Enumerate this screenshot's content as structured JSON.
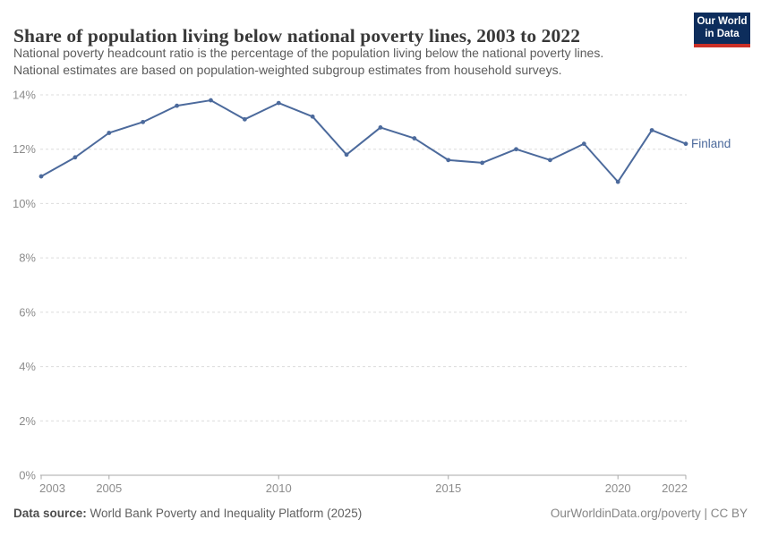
{
  "header": {
    "title": "Share of population living below national poverty lines, 2003 to 2022",
    "subtitle_line1": "National poverty headcount ratio is the percentage of the population living below the national poverty lines.",
    "subtitle_line2": "National estimates are based on population-weighted subgroup estimates from household surveys.",
    "logo": {
      "line1": "Our World",
      "line2": "in Data",
      "bg_color": "#0d2d5c",
      "stripe_color": "#cb3027"
    }
  },
  "chart_data": {
    "type": "line",
    "title": "Share of population living below national poverty lines, 2003 to 2022",
    "x": [
      2003,
      2004,
      2005,
      2006,
      2007,
      2008,
      2009,
      2010,
      2011,
      2012,
      2013,
      2014,
      2015,
      2016,
      2017,
      2018,
      2019,
      2020,
      2021,
      2022
    ],
    "series": [
      {
        "name": "Finland",
        "color": "#4c6a9c",
        "values": [
          11.0,
          11.7,
          12.6,
          13.0,
          13.6,
          13.8,
          13.1,
          13.7,
          13.2,
          11.8,
          12.8,
          12.4,
          11.6,
          11.5,
          12.0,
          11.6,
          12.2,
          10.8,
          12.7,
          12.2
        ]
      }
    ],
    "xlabel": "",
    "ylabel": "",
    "xlim": [
      2003,
      2022
    ],
    "ylim": [
      0,
      14
    ],
    "x_tick_labels": [
      "2003",
      "2005",
      "2010",
      "2015",
      "2020",
      "2022"
    ],
    "y_tick_labels": [
      "0%",
      "2%",
      "4%",
      "6%",
      "8%",
      "10%",
      "12%",
      "14%"
    ],
    "grid": true,
    "legend_position": "end-of-line",
    "colors": {
      "gridline": "#dcdcdc",
      "axis": "#a8a8a8",
      "tick_text": "#8c8c8c"
    }
  },
  "footer": {
    "source_label": "Data source:",
    "source_text": "World Bank Poverty and Inequality Platform (2025)",
    "rights": "OurWorldinData.org/poverty | CC BY"
  }
}
